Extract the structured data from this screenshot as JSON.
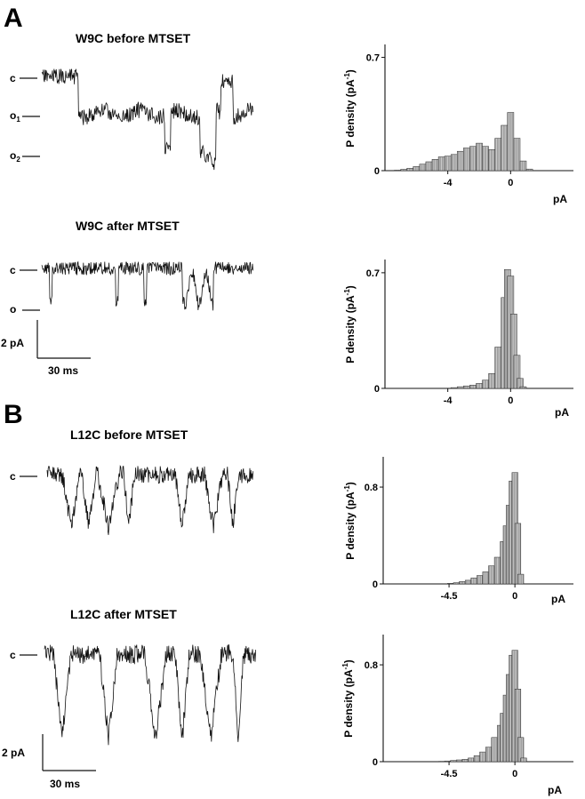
{
  "panels": [
    {
      "letter": "A"
    },
    {
      "letter": "B"
    }
  ],
  "traces": [
    {
      "title": "W9C before MTSET",
      "levels": [
        {
          "base": "c",
          "sub": ""
        },
        {
          "base": "o",
          "sub": "1"
        },
        {
          "base": "o",
          "sub": "2"
        }
      ]
    },
    {
      "title": "W9C after MTSET",
      "levels": [
        {
          "base": "c",
          "sub": ""
        },
        {
          "base": "o",
          "sub": ""
        }
      ]
    },
    {
      "title": "L12C before MTSET",
      "levels": [
        {
          "base": "c",
          "sub": ""
        }
      ]
    },
    {
      "title": "L12C after MTSET",
      "levels": [
        {
          "base": "c",
          "sub": ""
        }
      ]
    }
  ],
  "scale_bars": [
    {
      "current": "2 pA",
      "time": "30 ms"
    },
    {
      "current": "2 pA",
      "time": "30 ms"
    }
  ],
  "chart_data": [
    {
      "type": "bar",
      "ylabel": "P density (pA",
      "ylabel_sup": "-1",
      "ylabel_close": ")",
      "xlabel": "pA",
      "xlim": [
        -8,
        4
      ],
      "ylim": [
        0,
        0.78
      ],
      "xticks": [
        {
          "value": -4,
          "label": "-4"
        },
        {
          "value": 0,
          "label": "0"
        }
      ],
      "yticks": [
        {
          "value": 0,
          "label": "0"
        },
        {
          "value": 0.7,
          "label": "0.7"
        }
      ],
      "bins_x": [
        -7.2,
        -6.8,
        -6.4,
        -6.0,
        -5.6,
        -5.2,
        -4.8,
        -4.4,
        -4.0,
        -3.6,
        -3.2,
        -2.8,
        -2.4,
        -2.0,
        -1.6,
        -1.2,
        -0.8,
        -0.4,
        0.0,
        0.4,
        0.8,
        1.2
      ],
      "values": [
        0.003,
        0.008,
        0.015,
        0.025,
        0.04,
        0.055,
        0.07,
        0.085,
        0.09,
        0.1,
        0.12,
        0.14,
        0.15,
        0.17,
        0.15,
        0.13,
        0.2,
        0.28,
        0.36,
        0.2,
        0.06,
        0.01
      ]
    },
    {
      "type": "bar",
      "ylabel": "P density (pA",
      "ylabel_sup": "-1",
      "ylabel_close": ")",
      "xlabel": "pA",
      "xlim": [
        -8,
        4
      ],
      "ylim": [
        0,
        0.78
      ],
      "xticks": [
        {
          "value": -4,
          "label": "-4"
        },
        {
          "value": 0,
          "label": "0"
        }
      ],
      "yticks": [
        {
          "value": 0,
          "label": "0"
        },
        {
          "value": 0.7,
          "label": "0.7"
        }
      ],
      "bins_x": [
        -3.6,
        -3.2,
        -2.8,
        -2.4,
        -2.0,
        -1.6,
        -1.2,
        -0.8,
        -0.4,
        -0.2,
        0.0,
        0.2,
        0.4,
        0.6,
        0.8
      ],
      "values": [
        0.005,
        0.01,
        0.015,
        0.02,
        0.03,
        0.05,
        0.09,
        0.25,
        0.55,
        0.72,
        0.68,
        0.45,
        0.2,
        0.06,
        0.01
      ]
    },
    {
      "type": "bar",
      "ylabel": "P density (pA",
      "ylabel_sup": "-1",
      "ylabel_close": ")",
      "xlabel": "pA",
      "xlim": [
        -9,
        4
      ],
      "ylim": [
        0,
        1.05
      ],
      "xticks": [
        {
          "value": -4.5,
          "label": "-4.5"
        },
        {
          "value": 0,
          "label": "0"
        }
      ],
      "yticks": [
        {
          "value": 0,
          "label": "0"
        },
        {
          "value": 0.8,
          "label": "0.8"
        }
      ],
      "bins_x": [
        -4.4,
        -4.0,
        -3.6,
        -3.2,
        -2.8,
        -2.4,
        -2.0,
        -1.6,
        -1.2,
        -0.8,
        -0.6,
        -0.4,
        -0.2,
        0.0,
        0.2,
        0.4
      ],
      "values": [
        0.005,
        0.01,
        0.02,
        0.03,
        0.05,
        0.07,
        0.1,
        0.15,
        0.22,
        0.35,
        0.48,
        0.65,
        0.85,
        0.92,
        0.5,
        0.08
      ]
    },
    {
      "type": "bar",
      "ylabel": "P density (pA",
      "ylabel_sup": "-1",
      "ylabel_close": ")",
      "xlabel": "pA",
      "xlim": [
        -9,
        4
      ],
      "ylim": [
        0,
        1.05
      ],
      "xticks": [
        {
          "value": -4.5,
          "label": "-4.5"
        },
        {
          "value": 0,
          "label": "0"
        }
      ],
      "yticks": [
        {
          "value": 0,
          "label": "0"
        },
        {
          "value": 0.8,
          "label": "0.8"
        }
      ],
      "bins_x": [
        -5.0,
        -4.6,
        -4.2,
        -3.8,
        -3.4,
        -3.0,
        -2.6,
        -2.2,
        -1.8,
        -1.4,
        -1.0,
        -0.8,
        -0.6,
        -0.4,
        -0.2,
        0.0,
        0.2,
        0.4,
        0.6
      ],
      "values": [
        0.003,
        0.006,
        0.01,
        0.015,
        0.02,
        0.03,
        0.05,
        0.08,
        0.12,
        0.2,
        0.3,
        0.4,
        0.55,
        0.72,
        0.88,
        0.92,
        0.6,
        0.2,
        0.03
      ]
    }
  ]
}
